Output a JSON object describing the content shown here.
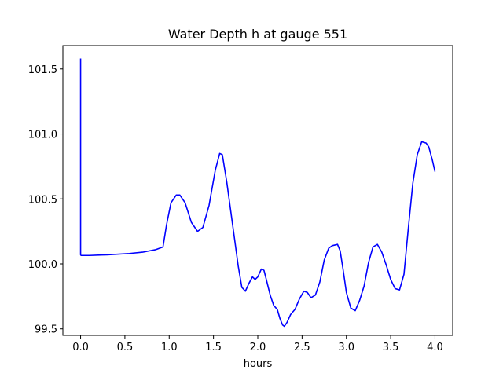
{
  "chart_data": {
    "type": "line",
    "title": "Water Depth h at gauge 551",
    "xlabel": "hours",
    "ylabel": "",
    "xlim": [
      -0.2,
      4.2
    ],
    "ylim": [
      99.45,
      101.68
    ],
    "xticks": [
      0.0,
      0.5,
      1.0,
      1.5,
      2.0,
      2.5,
      3.0,
      3.5,
      4.0
    ],
    "xtick_labels": [
      "0.0",
      "0.5",
      "1.0",
      "1.5",
      "2.0",
      "2.5",
      "3.0",
      "3.5",
      "4.0"
    ],
    "yticks": [
      99.5,
      100.0,
      100.5,
      101.0,
      101.5
    ],
    "ytick_labels": [
      "99.5",
      "100.0",
      "100.5",
      "101.0",
      "101.5"
    ],
    "grid": false,
    "series": [
      {
        "color": "#0000ff",
        "x": [
          0.0,
          0.0,
          0.005,
          0.1,
          0.3,
          0.55,
          0.7,
          0.85,
          0.93,
          0.97,
          1.02,
          1.08,
          1.12,
          1.18,
          1.25,
          1.32,
          1.38,
          1.45,
          1.52,
          1.57,
          1.6,
          1.65,
          1.72,
          1.78,
          1.82,
          1.86,
          1.9,
          1.94,
          1.97,
          2.0,
          2.04,
          2.07,
          2.1,
          2.14,
          2.18,
          2.22,
          2.25,
          2.28,
          2.3,
          2.33,
          2.37,
          2.42,
          2.47,
          2.52,
          2.56,
          2.6,
          2.65,
          2.7,
          2.75,
          2.8,
          2.84,
          2.9,
          2.93,
          2.96,
          3.0,
          3.05,
          3.1,
          3.15,
          3.2,
          3.25,
          3.3,
          3.35,
          3.4,
          3.45,
          3.5,
          3.55,
          3.6,
          3.65,
          3.7,
          3.75,
          3.8,
          3.85,
          3.9,
          3.93,
          3.97,
          4.0
        ],
        "y": [
          101.58,
          100.07,
          100.065,
          100.065,
          100.07,
          100.08,
          100.09,
          100.11,
          100.13,
          100.3,
          100.47,
          100.53,
          100.53,
          100.47,
          100.32,
          100.25,
          100.28,
          100.45,
          100.72,
          100.85,
          100.84,
          100.63,
          100.28,
          99.98,
          99.82,
          99.79,
          99.85,
          99.9,
          99.88,
          99.9,
          99.96,
          99.95,
          99.87,
          99.76,
          99.68,
          99.65,
          99.58,
          99.53,
          99.52,
          99.55,
          99.61,
          99.65,
          99.73,
          99.79,
          99.78,
          99.74,
          99.76,
          99.86,
          100.03,
          100.12,
          100.14,
          100.15,
          100.1,
          99.97,
          99.78,
          99.66,
          99.64,
          99.72,
          99.83,
          100.01,
          100.13,
          100.15,
          100.09,
          99.99,
          99.88,
          99.81,
          99.8,
          99.92,
          100.28,
          100.62,
          100.84,
          100.94,
          100.93,
          100.9,
          100.8,
          100.71
        ]
      }
    ]
  }
}
